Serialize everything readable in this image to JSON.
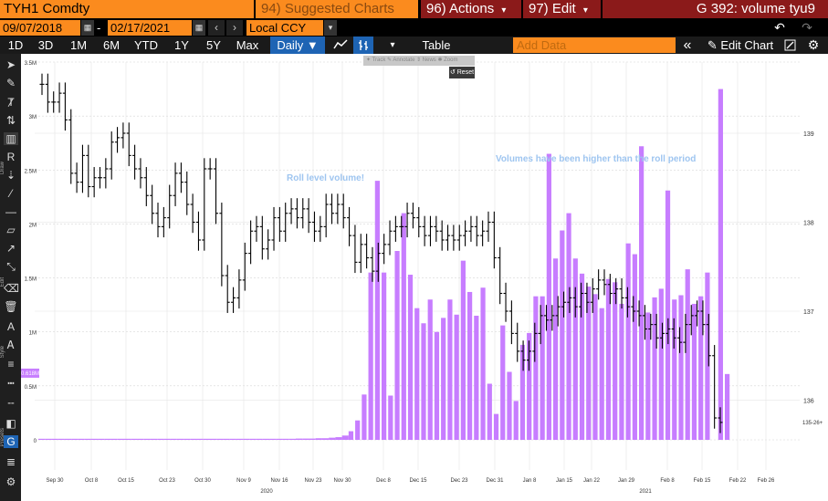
{
  "header": {
    "ticker": "TYH1 Comdty",
    "suggested_charts": "94) Suggested Charts",
    "actions": "96) Actions",
    "edit": "97) Edit",
    "title": "G 392: volume tyu9",
    "dropdown_glyph": "▾"
  },
  "date_range": {
    "start": "09/07/2018",
    "end": "02/17/2021",
    "currency": "Local CCY",
    "dash": "-"
  },
  "range_buttons": [
    "1D",
    "3D",
    "1M",
    "6M",
    "YTD",
    "1Y",
    "5Y",
    "Max"
  ],
  "periodicity": "Daily ▼",
  "toolbar": {
    "table": "Table",
    "add_data_placeholder": "Add Data",
    "edit_chart": "Edit Chart",
    "collapse_glyph": "«",
    "edit_glyph": "✎"
  },
  "popup": {
    "items": "✦ Track  ✎ Annotate  ⇕ News  ✱ Zoom",
    "reset": "↺ Reset"
  },
  "annotations": {
    "roll_label": "Roll level volume!",
    "higher_label": "Volumes have been higher than the roll period"
  },
  "left_axis": {
    "ticks": [
      "3.5M",
      "3M",
      "2.5M",
      "2M",
      "1.5M",
      "1M",
      "0.5M",
      "0"
    ],
    "current_badge": "0.618M",
    "badge_color": "#c77dff"
  },
  "right_axis": {
    "ticks": [
      "139",
      "138",
      "137",
      "136"
    ],
    "current_label": "135-26+"
  },
  "x_axis": {
    "ticks": [
      "Sep 30",
      "Oct 8",
      "Oct 15",
      "Oct 23",
      "Oct 30",
      "Nov 9",
      "Nov 16",
      "Nov 23",
      "Nov 30",
      "Dec 8",
      "Dec 15",
      "Dec 23",
      "Dec 31",
      "Jan 8",
      "Jan 15",
      "Jan 22",
      "Jan 29",
      "Feb 8",
      "Feb 15",
      "Feb 22",
      "Feb 26"
    ],
    "years": [
      "2020",
      "2021"
    ]
  },
  "left_tool_labels": [
    "Draw",
    "Edit",
    "Style",
    "Presets"
  ],
  "colors": {
    "accent_orange": "#fb8b1e",
    "menu_red": "#8b1a1a",
    "volume_bar": "#c77dff",
    "price_bar": "#000000",
    "annotation_text": "#9ec5f0",
    "active_blue": "#1e64b4"
  },
  "chart_data": {
    "type": "bar",
    "title": "",
    "xlabel": "",
    "ylabel": "",
    "ylim": [
      0,
      3500000
    ],
    "price_ylim": [
      135.5,
      140.4
    ],
    "x_ticks": [
      "Sep 30",
      "Oct 8",
      "Oct 15",
      "Oct 23",
      "Oct 30",
      "Nov 9",
      "Nov 16",
      "Nov 23",
      "Nov 30",
      "Dec 8",
      "Dec 15",
      "Dec 23",
      "Dec 31",
      "Jan 8",
      "Jan 15",
      "Jan 22",
      "Jan 29",
      "Feb 8",
      "Feb 15",
      "Feb 22",
      "Feb 26"
    ],
    "series": [
      {
        "type": "bar",
        "values": [
          10000,
          10000,
          10000,
          10000,
          10000,
          10000,
          10000,
          10000,
          10000,
          10000,
          10000,
          10000,
          10000,
          10000,
          10000,
          10000,
          10000,
          10000,
          10000,
          10000,
          10000,
          10000,
          10000,
          10000,
          10000,
          10000,
          10000,
          10000,
          10000,
          10000,
          10000,
          10000,
          10000,
          10000,
          10000,
          10000,
          10000,
          10000,
          10000,
          12000,
          12000,
          12000,
          15000,
          15000,
          20000,
          25000,
          40000,
          80000,
          180000,
          420000,
          1550000,
          2400000,
          1550000,
          410000,
          1750000,
          2100000,
          1530000,
          1220000,
          1080000,
          1300000,
          1000000,
          1130000,
          1300000,
          1160000,
          1660000,
          1370000,
          1150000,
          1410000,
          520000,
          240000,
          1060000,
          630000,
          360000,
          880000,
          990000,
          1330000,
          1330000,
          2650000,
          1680000,
          1940000,
          2100000,
          1680000,
          1540000,
          1420000,
          1350000,
          1220000,
          1490000,
          1460000,
          1260000,
          1820000,
          1720000,
          2720000,
          1180000,
          1320000,
          1400000,
          2310000,
          1300000,
          1340000,
          1580000,
          1260000,
          1330000,
          1550000,
          0,
          3250000,
          610000
        ],
        "color": "#c77dff"
      },
      {
        "type": "ohlc",
        "values": [
          139.55,
          139.35,
          139.35,
          139.45,
          139.15,
          138.55,
          138.45,
          138.75,
          138.4,
          138.5,
          138.5,
          138.6,
          138.9,
          138.95,
          139.0,
          138.75,
          138.6,
          138.5,
          138.3,
          138.1,
          137.95,
          138.05,
          138.3,
          138.55,
          138.45,
          138.2,
          138.0,
          137.8,
          138.6,
          138.6,
          138.1,
          137.4,
          137.1,
          137.15,
          137.35,
          137.65,
          137.9,
          137.95,
          137.7,
          137.8,
          138.05,
          137.9,
          138.1,
          138.15,
          138.05,
          138.15,
          138.0,
          137.9,
          137.95,
          138.2,
          138.1,
          138.2,
          138.05,
          137.85,
          137.55,
          137.75,
          137.6,
          137.45,
          137.65,
          137.75,
          137.9,
          137.95,
          137.95,
          138.1,
          138.05,
          137.95,
          137.85,
          137.95,
          137.9,
          137.8,
          137.85,
          137.8,
          137.85,
          137.9,
          137.95,
          137.85,
          137.9,
          138.0,
          137.6,
          137.2,
          137.0,
          136.75,
          136.55,
          136.45,
          136.55,
          136.75,
          136.95,
          136.9,
          136.95,
          137.05,
          137.1,
          137.15,
          137.05,
          137.2,
          137.1,
          137.25,
          137.35,
          137.3,
          137.2,
          137.25,
          137.15,
          137.05,
          137.0,
          136.95,
          136.8,
          136.85,
          136.7,
          136.75,
          136.8,
          136.7,
          136.65,
          136.85,
          136.95,
          137.0,
          136.85,
          136.5,
          135.8,
          135.75
        ]
      }
    ]
  }
}
